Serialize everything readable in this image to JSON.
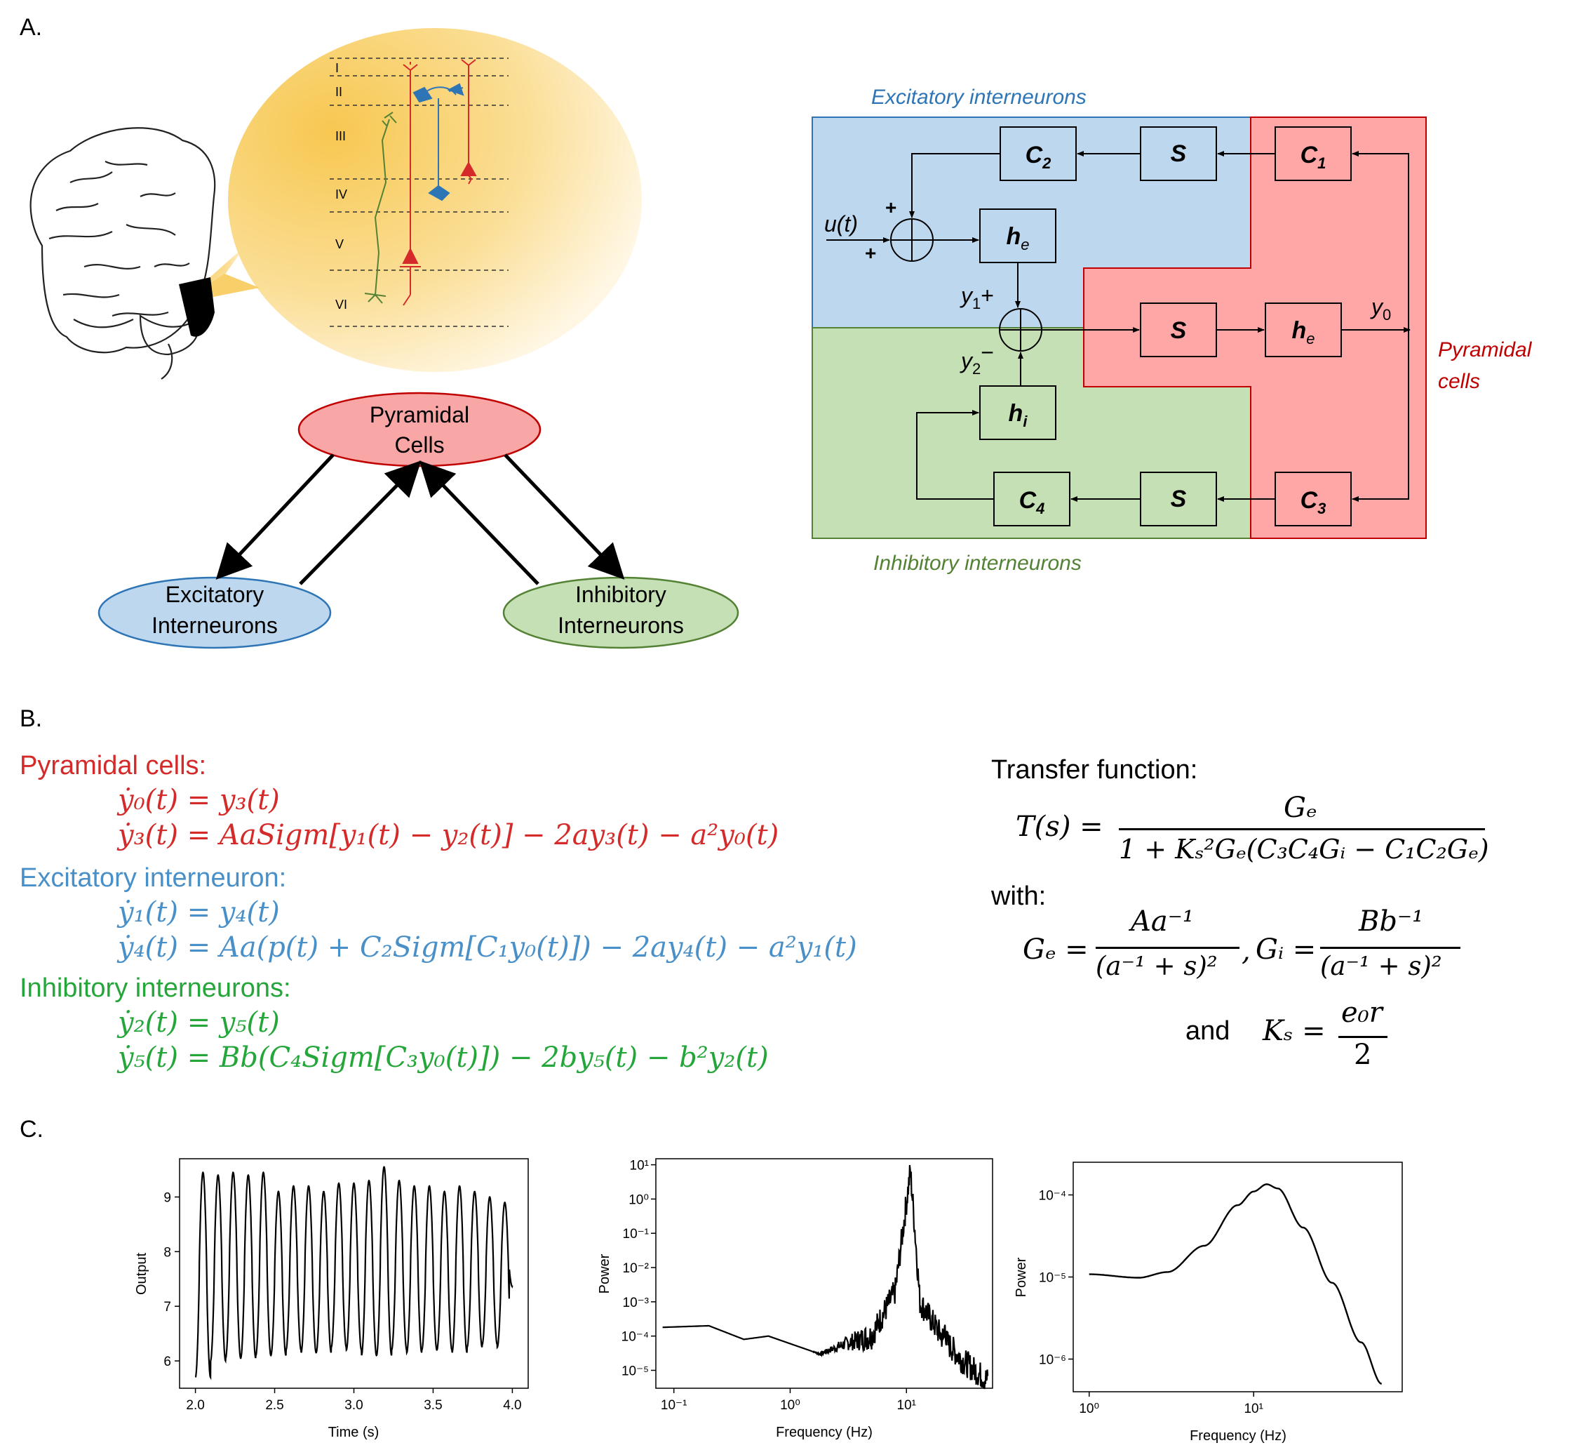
{
  "panels": {
    "a": "A.",
    "b": "B.",
    "c": "C."
  },
  "cortex": {
    "layers": [
      "I",
      "II",
      "III",
      "IV",
      "V",
      "VI"
    ]
  },
  "population_diagram": {
    "pyramidal": [
      "Pyramidal",
      "Cells"
    ],
    "excitatory": [
      "Excitatory",
      "Interneurons"
    ],
    "inhibitory": [
      "Inhibitory",
      "Interneurons"
    ]
  },
  "block_diagram": {
    "excitatory_title": "Excitatory interneurons",
    "inhibitory_title": "Inhibitory interneurons",
    "pyramidal_title": [
      "Pyramidal",
      "cells"
    ],
    "input": "u(t)",
    "plus": "+",
    "minus": "−",
    "y1": "y",
    "y1_sub": "1",
    "y2": "y",
    "y2_sub": "2",
    "y0": "y",
    "y0_sub": "0",
    "blocks": {
      "C1": {
        "main": "C",
        "sub": "1"
      },
      "C2": {
        "main": "C",
        "sub": "2"
      },
      "C3": {
        "main": "C",
        "sub": "3"
      },
      "C4": {
        "main": "C",
        "sub": "4"
      },
      "S": {
        "main": "S"
      },
      "he": {
        "main": "h",
        "sub": "e"
      },
      "hi": {
        "main": "h",
        "sub": "i"
      }
    },
    "colors": {
      "excitatory": "#bdd7ee",
      "inhibitory": "#c5e0b4",
      "pyramidal": "#ffa7a7"
    }
  },
  "equations": {
    "pyramidal_head": "Pyramidal cells:",
    "pyr_eq1": "ẏ₀(t) = y₃(t)",
    "pyr_eq2": "ẏ₃(t) = AaSigm[y₁(t) − y₂(t)] − 2ay₃(t) − a²y₀(t)",
    "exc_head": "Excitatory interneuron:",
    "exc_eq1": "ẏ₁(t) = y₄(t)",
    "exc_eq2": "ẏ₄(t) = Aa(p(t) + C₂Sigm[C₁y₀(t)]) − 2ay₄(t) − a²y₁(t)",
    "inh_head": "Inhibitory interneurons:",
    "inh_eq1": "ẏ₂(t) = y₅(t)",
    "inh_eq2": "ẏ₅(t) = Bb(C₄Sigm[C₃y₀(t)]) − 2by₅(t) − b²y₂(t)",
    "transfer_head": "Transfer function:",
    "T_lhs": "T(s) =",
    "T_num": "Gₑ",
    "T_den": "1 + Kₛ²Gₑ(C₃C₄Gᵢ − C₁C₂Gₑ)",
    "with": "with:",
    "Ge_lhs": "Gₑ =",
    "Ge_num": "Aa⁻¹",
    "Ge_den": "(a⁻¹ + s)²",
    "comma": ",",
    "Gi_lhs": "Gᵢ =",
    "Gi_num": "Bb⁻¹",
    "Gi_den": "(a⁻¹ + s)²",
    "and": "and",
    "Ks_lhs": "Kₛ =",
    "Ks_num": "e₀r",
    "Ks_den": "2"
  },
  "chart_data": [
    {
      "type": "line",
      "xlabel": "Time (s)",
      "ylabel": "Output",
      "xlim": [
        2.0,
        4.0
      ],
      "ylim": [
        5.5,
        9.7
      ],
      "xticks": [
        "2.0",
        "2.5",
        "3.0",
        "3.5",
        "4.0"
      ],
      "yticks": [
        "6",
        "7",
        "8",
        "9"
      ],
      "oscillation_hz": 10.5,
      "series": [
        {
          "values_summary": {
            "min": 5.7,
            "max": 9.55
          }
        }
      ]
    },
    {
      "type": "line",
      "xlabel": "Frequency (Hz)",
      "ylabel": "Power",
      "xscale": "log",
      "yscale": "log",
      "xlim": [
        0.07,
        55
      ],
      "ylim": [
        3e-06,
        15
      ],
      "xticks": [
        "10⁻¹",
        "10⁰",
        "10¹"
      ],
      "yticks": [
        "10¹",
        "10⁰",
        "10⁻¹",
        "10⁻²",
        "10⁻³",
        "10⁻⁴",
        "10⁻⁵"
      ],
      "peaks": [
        {
          "x": 10.8,
          "y": 6.5
        },
        {
          "x": 21.5,
          "y": 0.0003
        }
      ],
      "points": [
        [
          0.08,
          0.00018
        ],
        [
          0.2,
          0.0002
        ],
        [
          0.4,
          8e-05
        ],
        [
          0.65,
          0.0001
        ],
        [
          1.0,
          6e-05
        ],
        [
          1.8,
          3e-05
        ],
        [
          3.0,
          6e-05
        ],
        [
          5.0,
          0.0001
        ],
        [
          8.0,
          0.002
        ],
        [
          10.8,
          6.5
        ],
        [
          13.0,
          0.001
        ],
        [
          20.0,
          0.0001
        ],
        [
          30.0,
          2e-05
        ],
        [
          50.0,
          5e-06
        ]
      ]
    },
    {
      "type": "line",
      "xlabel": "Frequency (Hz)",
      "ylabel": "Power",
      "xscale": "log",
      "yscale": "log",
      "xlim": [
        0.8,
        80
      ],
      "ylim": [
        4e-07,
        0.00025
      ],
      "xticks": [
        "10⁰",
        "10¹"
      ],
      "yticks": [
        "10⁻⁴",
        "10⁻⁵",
        "10⁻⁶"
      ],
      "points": [
        [
          1.0,
          1.08e-05
        ],
        [
          2.0,
          9.8e-06
        ],
        [
          3.0,
          1.15e-05
        ],
        [
          5.0,
          2.4e-05
        ],
        [
          8.0,
          7.5e-05
        ],
        [
          10.0,
          0.00011
        ],
        [
          12.0,
          0.000135
        ],
        [
          14.0,
          0.00012
        ],
        [
          20.0,
          4e-05
        ],
        [
          30.0,
          8.5e-06
        ],
        [
          45.0,
          1.6e-06
        ],
        [
          60.0,
          5e-07
        ]
      ]
    }
  ]
}
